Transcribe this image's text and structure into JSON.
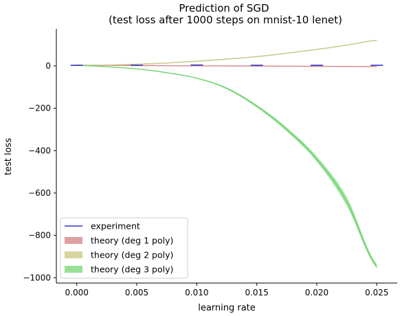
{
  "chart_data": {
    "type": "line",
    "title": "Prediction of SGD",
    "subtitle": "(test loss after 1000 steps on mnist-10 lenet)",
    "xlabel": "learning rate",
    "ylabel": "test loss",
    "xlim": [
      -0.0017,
      0.0267
    ],
    "ylim": [
      -1025,
      175
    ],
    "xticks": [
      0.0,
      0.005,
      0.01,
      0.015,
      0.02,
      0.025
    ],
    "xtick_labels": [
      "0.000",
      "0.005",
      "0.010",
      "0.015",
      "0.020",
      "0.025"
    ],
    "yticks": [
      0,
      -200,
      -400,
      -600,
      -800,
      -1000
    ],
    "ytick_labels": [
      "0",
      "−200",
      "−400",
      "−600",
      "−800",
      "−1000"
    ],
    "grid": false,
    "legend_position": "lower-left",
    "experiment": {
      "name": "experiment",
      "color": "#3333cc",
      "x": [
        0.0,
        0.005,
        0.01,
        0.015,
        0.02,
        0.025
      ],
      "y": [
        3,
        3,
        4,
        3,
        3,
        3
      ]
    },
    "series": [
      {
        "name": "theory (deg 1 poly)",
        "color": "#e0a0a0",
        "line_color": "#d98a8a",
        "x": [
          0.0,
          0.005,
          0.01,
          0.015,
          0.02,
          0.025
        ],
        "y": [
          3,
          1.8,
          0.6,
          -0.6,
          -1.8,
          -3.2
        ],
        "band": 2
      },
      {
        "name": "theory (deg 2 poly)",
        "color": "#d8d4a0",
        "line_color": "#c8c48a",
        "x": [
          0.0,
          0.0025,
          0.005,
          0.0075,
          0.01,
          0.0125,
          0.015,
          0.0175,
          0.02,
          0.0225,
          0.025
        ],
        "y": [
          3,
          4,
          8,
          14,
          22,
          32,
          44,
          60,
          78,
          98,
          121
        ],
        "band": 2
      },
      {
        "name": "theory (deg 3 poly)",
        "color": "#98e098",
        "line_color": "#70d070",
        "x": [
          0.0,
          0.0025,
          0.005,
          0.0075,
          0.01,
          0.0125,
          0.015,
          0.0175,
          0.02,
          0.0225,
          0.025
        ],
        "y": [
          3,
          -4,
          -14,
          -32,
          -58,
          -106,
          -190,
          -300,
          -440,
          -640,
          -946
        ],
        "band_lower": [
          3,
          -4,
          -14,
          -33,
          -60,
          -110,
          -196,
          -309,
          -452,
          -660,
          -956
        ],
        "band_upper": [
          3,
          -4,
          -14,
          -31,
          -56,
          -102,
          -184,
          -291,
          -428,
          -620,
          -936
        ]
      }
    ]
  }
}
